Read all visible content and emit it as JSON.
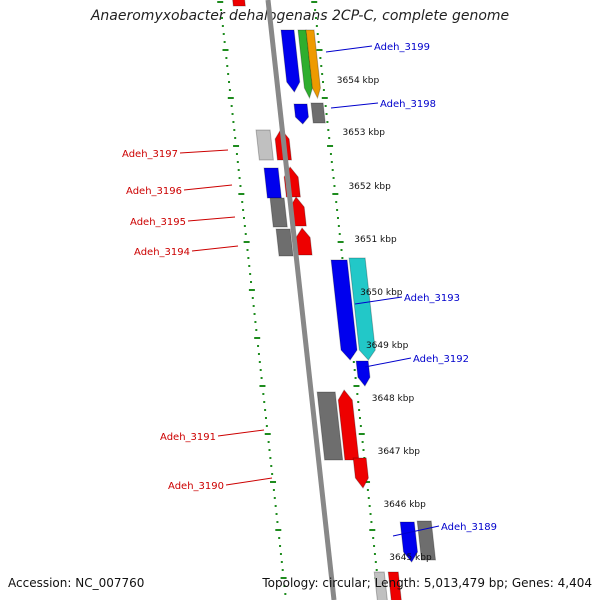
{
  "title": "Anaeromyxobacter dehalogenans 2CP-C, complete genome",
  "accession": "Accession: NC_007760",
  "topology": "Topology: circular; Length: 5,013,479 bp; Genes: 4,404",
  "colors": {
    "backbone": "#888888",
    "tick": "#1e8c1e",
    "right_label": "#0000cc",
    "left_label": "#cc0000",
    "blue": "#0000ee",
    "red": "#ee0000",
    "gray": "#6e6e6e",
    "light_gray": "#c0c0c0",
    "cyan": "#22c8c8",
    "green": "#2eae2e",
    "orange": "#ee9a00"
  },
  "kbp_labels": [
    {
      "text": "3654 kbp",
      "kbp": 3654
    },
    {
      "text": "3653 kbp",
      "kbp": 3653
    },
    {
      "text": "3652 kbp",
      "kbp": 3652
    },
    {
      "text": "3651 kbp",
      "kbp": 3651
    },
    {
      "text": "3650 kbp",
      "kbp": 3650
    },
    {
      "text": "3649 kbp",
      "kbp": 3649
    },
    {
      "text": "3648 kbp",
      "kbp": 3648
    },
    {
      "text": "3647 kbp",
      "kbp": 3647
    },
    {
      "text": "3646 kbp",
      "kbp": 3646
    },
    {
      "text": "3645 kbp",
      "kbp": 3645
    }
  ],
  "genes": [
    {
      "label": "Adeh_3199",
      "side": "right"
    },
    {
      "label": "Adeh_3198",
      "side": "right"
    },
    {
      "label": "Adeh_3197",
      "side": "left"
    },
    {
      "label": "Adeh_3196",
      "side": "left"
    },
    {
      "label": "Adeh_3195",
      "side": "left"
    },
    {
      "label": "Adeh_3194",
      "side": "left"
    },
    {
      "label": "Adeh_3193",
      "side": "right"
    },
    {
      "label": "Adeh_3192",
      "side": "right"
    },
    {
      "label": "Adeh_3191",
      "side": "left"
    },
    {
      "label": "Adeh_3190",
      "side": "left"
    },
    {
      "label": "Adeh_3189",
      "side": "right"
    }
  ]
}
